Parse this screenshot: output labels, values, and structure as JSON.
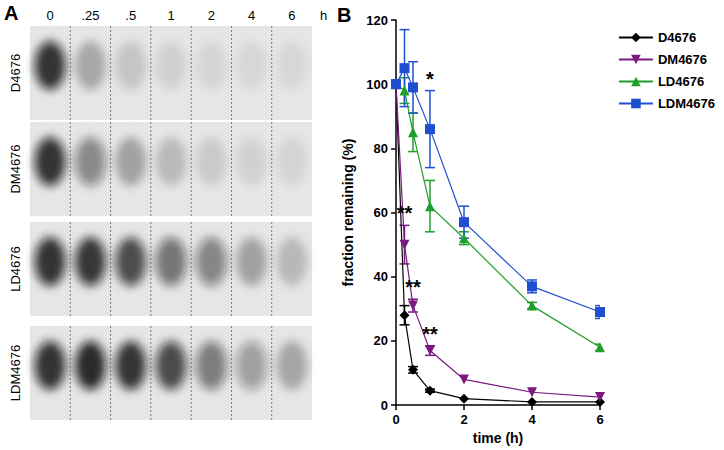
{
  "chart_data": {
    "type": "line",
    "title": "B",
    "x_label": "time (h)",
    "y_label": "fraction remaining (%)",
    "x": [
      0,
      0.25,
      0.5,
      1,
      2,
      4,
      6
    ],
    "series": [
      {
        "name": "D4676",
        "color": "#000000",
        "marker": "diamond",
        "line_style": "solid",
        "values": [
          100,
          28,
          11,
          4.5,
          2,
          1,
          1
        ],
        "errors": [
          null,
          3,
          1,
          0.5,
          null,
          null,
          null
        ]
      },
      {
        "name": "DM4676",
        "color": "#7a1a80",
        "marker": "triangle_down",
        "line_style": "solid",
        "values": [
          100,
          50,
          31,
          17,
          8,
          4,
          2.5
        ],
        "errors": [
          null,
          6,
          2,
          1.5,
          null,
          null,
          null
        ],
        "significance": [
          null,
          "**",
          "**",
          "**",
          null,
          null,
          null
        ]
      },
      {
        "name": "LD4676",
        "color": "#1f9e2a",
        "marker": "triangle",
        "line_style": "solid",
        "values": [
          100,
          98,
          85,
          62,
          52,
          31,
          18
        ],
        "errors": [
          null,
          4,
          6,
          8,
          2,
          1,
          1
        ]
      },
      {
        "name": "LDM4676",
        "color": "#1f4fd0",
        "marker": "square",
        "line_style": "solid",
        "values": [
          100,
          105,
          99,
          86,
          57,
          37,
          29
        ],
        "errors": [
          null,
          12,
          8,
          12,
          5,
          2,
          2
        ],
        "significance": [
          null,
          null,
          null,
          "*",
          null,
          null,
          null
        ]
      }
    ],
    "xlim": [
      0,
      6
    ],
    "xticks": [
      0,
      2,
      4,
      6
    ],
    "ylim": [
      0,
      120
    ],
    "yticks": [
      0,
      20,
      40,
      60,
      80,
      100,
      120
    ],
    "grid": false,
    "legend": "top-right"
  },
  "gel": {
    "title": "A",
    "lanes": [
      "0",
      ".25",
      ".5",
      "1",
      "2",
      "4",
      "6"
    ],
    "unit": "h",
    "rows": [
      "D4676",
      "DM4676",
      "LD4676",
      "LDM4676"
    ]
  }
}
